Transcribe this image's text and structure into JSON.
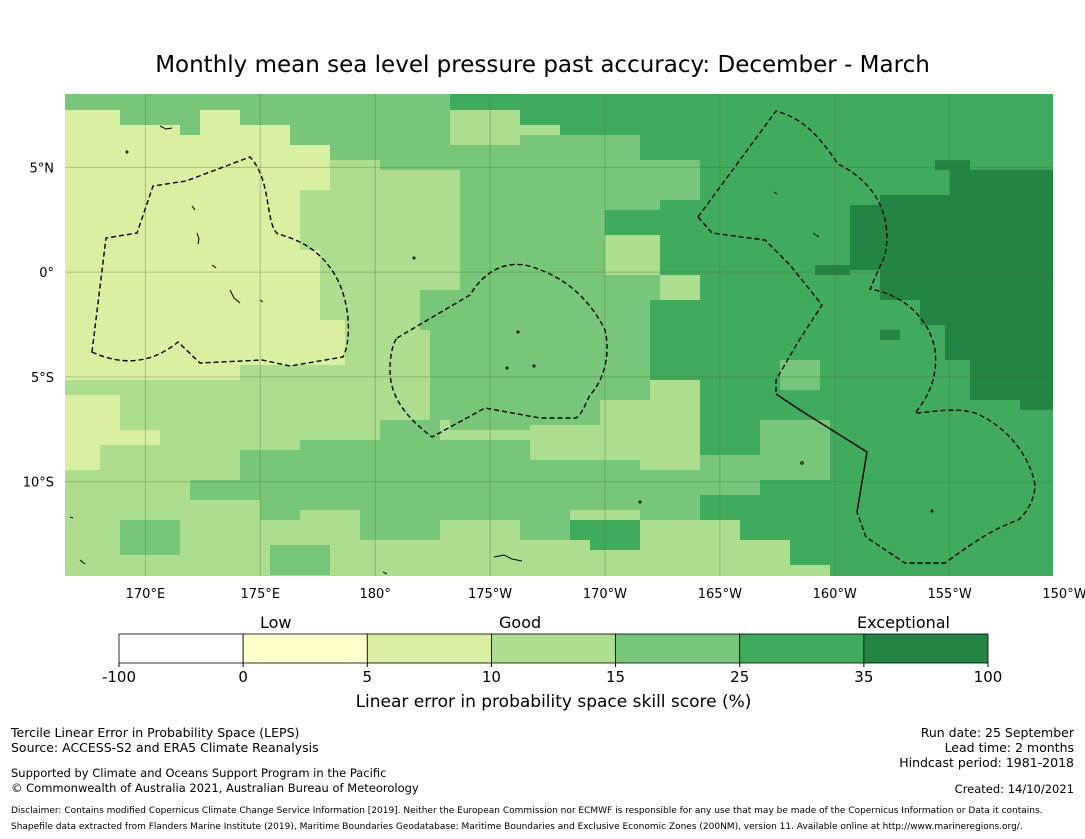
{
  "title": "Monthly mean sea level pressure past accuracy: December - March",
  "map": {
    "lat_ticks": [
      "5°N",
      "0°",
      "5°S",
      "10°S"
    ],
    "lon_ticks": [
      "170°E",
      "175°E",
      "180°",
      "175°W",
      "170°W",
      "165°W",
      "160°W",
      "155°W",
      "150°W"
    ],
    "lat_range": [
      -14.5,
      8.5
    ],
    "lon_range": [
      166.5,
      209.5
    ]
  },
  "colorbar": {
    "category_labels": [
      "Low",
      "Good",
      "Exceptional"
    ],
    "tick_labels": [
      "-100",
      "0",
      "5",
      "10",
      "15",
      "25",
      "35",
      "100"
    ],
    "colors": [
      "#ffffff",
      "#ffffcc",
      "#d9f0a3",
      "#addd8e",
      "#78c679",
      "#41ab5d",
      "#238443"
    ],
    "xlabel": "Linear error in probability space skill score (%)"
  },
  "footer": {
    "left": [
      "Tercile Linear Error in Probability Space (LEPS)",
      "Source: ACCESS-S2 and ERA5 Climate Reanalysis",
      "Supported by Climate and Oceans Support Program in the Pacific",
      "© Commonwealth of Australia 2021, Australian Bureau of Meteorology"
    ],
    "right": [
      "Run date: 25 September",
      "Lead time: 2 months",
      "Hindcast period: 1981-2018",
      "Created: 14/10/2021"
    ],
    "disclaimer": "Disclaimer: Contains modified Copernicus Climate Change Service Information [2019]. Neither the European Commission nor ECMWF is responsible for any use that may be made of the Copernicus Information or Data it contains.",
    "shapefile": "Shapefile data extracted from Flanders Marine Institute (2019), Maritime Boundaries Geodatabase: Maritime Boundaries and Exclusive Economic Zones (200NM), version 11. Available online at http://www.marineregions.org/."
  }
}
